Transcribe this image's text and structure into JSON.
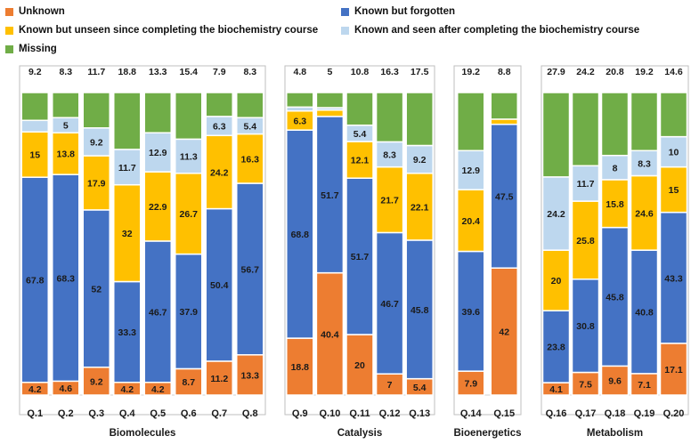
{
  "chart_data": {
    "type": "bar",
    "stacked": true,
    "percent": true,
    "ylim": [
      0,
      100
    ],
    "grid": false,
    "legend_position": "top",
    "colors": {
      "Unknown": "#ED7D31",
      "Known but forgotten": "#4472C4",
      "Known but unseen since completing the biochemistry course": "#FFC000",
      "Known and seen after completing the biochemistry course": "#BDD7EE",
      "Missing": "#70AD47"
    },
    "legend": [
      "Unknown",
      "Known but forgotten",
      "Known but unseen since completing the biochemistry course",
      "Known and seen after completing the biochemistry course",
      "Missing"
    ],
    "groups": [
      {
        "name": "Biomolecules",
        "categories": [
          "Q.1",
          "Q.2",
          "Q.3",
          "Q.4",
          "Q.5",
          "Q.6",
          "Q.7",
          "Q.8"
        ]
      },
      {
        "name": "Catalysis",
        "categories": [
          "Q.9",
          "Q.10",
          "Q.11",
          "Q.12",
          "Q.13"
        ]
      },
      {
        "name": "Bioenergetics",
        "categories": [
          "Q.14",
          "Q.15"
        ]
      },
      {
        "name": "Metabolism",
        "categories": [
          "Q.16",
          "Q.17",
          "Q.18",
          "Q.19",
          "Q.20"
        ]
      }
    ],
    "categories": [
      "Q.1",
      "Q.2",
      "Q.3",
      "Q.4",
      "Q.5",
      "Q.6",
      "Q.7",
      "Q.8",
      "Q.9",
      "Q.10",
      "Q.11",
      "Q.12",
      "Q.13",
      "Q.14",
      "Q.15",
      "Q.16",
      "Q.17",
      "Q.18",
      "Q.19",
      "Q.20"
    ],
    "series": [
      {
        "name": "Unknown",
        "values": [
          4.2,
          4.6,
          9.2,
          4.2,
          4.2,
          8.7,
          11.2,
          13.3,
          18.8,
          40.4,
          20,
          7,
          5.4,
          7.9,
          42,
          4.1,
          7.5,
          9.6,
          7.1,
          17.1
        ]
      },
      {
        "name": "Known but forgotten",
        "values": [
          67.8,
          68.3,
          52,
          33.3,
          46.7,
          37.9,
          50.4,
          56.7,
          68.8,
          51.7,
          51.7,
          46.7,
          45.8,
          39.6,
          47.5,
          23.8,
          30.8,
          45.8,
          40.8,
          43.3
        ]
      },
      {
        "name": "Known but unseen since completing the biochemistry course",
        "values": [
          15,
          13.8,
          17.9,
          32,
          22.9,
          26.7,
          24.2,
          16.3,
          6.3,
          2.1,
          12.1,
          21.7,
          22.1,
          20.4,
          1.7,
          20,
          25.8,
          15.8,
          24.6,
          15
        ]
      },
      {
        "name": "Known and seen after completing the biochemistry course",
        "values": [
          3.8,
          5,
          9.2,
          11.7,
          12.9,
          11.3,
          6.3,
          5.4,
          1.3,
          0.8,
          5.4,
          8.3,
          9.2,
          12.9,
          0,
          24.2,
          11.7,
          8,
          8.3,
          10
        ]
      },
      {
        "name": "Missing",
        "values": [
          9.2,
          8.3,
          11.7,
          18.8,
          13.3,
          15.4,
          7.9,
          8.3,
          4.8,
          5,
          10.8,
          16.3,
          17.5,
          19.2,
          8.8,
          27.9,
          24.2,
          20.8,
          19.2,
          14.6
        ]
      }
    ],
    "data_labels": [
      [
        "4.2",
        "67.8",
        "15",
        "3.8",
        "9.2"
      ],
      [
        "4.6",
        "68.3",
        "13.8",
        "5",
        "8.3"
      ],
      [
        "9.2",
        "52",
        "17.9",
        "9.2",
        "11.7"
      ],
      [
        "4.2",
        "33.3",
        "32",
        "11.7",
        "18.8"
      ],
      [
        "4.2",
        "46.7",
        "22.9",
        "12.9",
        "13.3"
      ],
      [
        "8.7",
        "37.9",
        "26.7",
        "11.3",
        "15.4"
      ],
      [
        "11.2",
        "50.4",
        "24.2",
        "6.3",
        "7.9"
      ],
      [
        "13.3",
        "56.7",
        "16.3",
        "5.4",
        "8.3"
      ],
      [
        "18.8",
        "68.8",
        "6.3",
        "1.3",
        "4.8"
      ],
      [
        "40.4",
        "51.7",
        "2.1",
        "0.8",
        "5"
      ],
      [
        "20",
        "51.7",
        "12.1",
        "5.4",
        "10.8"
      ],
      [
        "7",
        "46.7",
        "21.7",
        "8.3",
        "16.3"
      ],
      [
        "5.4",
        "45.8",
        "22.1",
        "9.2",
        "17.5"
      ],
      [
        "7.9",
        "39.6",
        "20.4",
        "12.9",
        "19.2"
      ],
      [
        "42",
        "47.5",
        "1.7",
        "0",
        "8.8"
      ],
      [
        "4.1",
        "23.8",
        "20",
        "24.2",
        "27.9"
      ],
      [
        "7.5",
        "30.8",
        "25.8",
        "11.7",
        "24.2"
      ],
      [
        "9.6",
        "45.8",
        "15.8",
        "8",
        "20.8"
      ],
      [
        "7.1",
        "40.8",
        "24.6",
        "8.3",
        "19.2"
      ],
      [
        "17.1",
        "43.3",
        "15",
        "10",
        "14.6"
      ]
    ]
  }
}
